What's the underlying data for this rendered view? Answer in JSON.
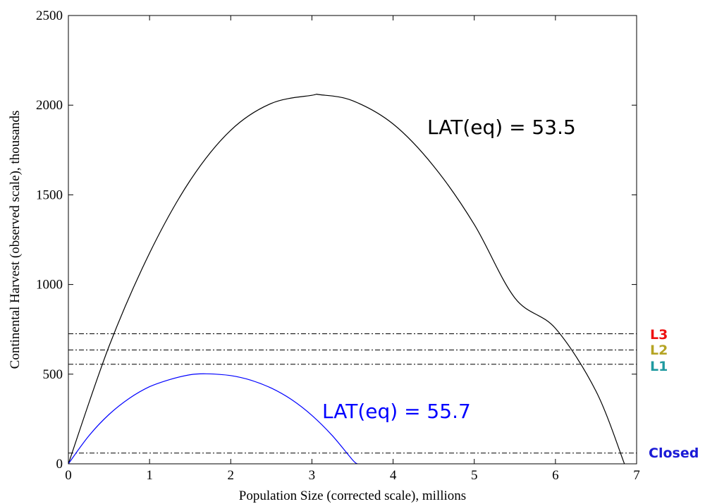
{
  "chart_data": {
    "type": "line",
    "xlabel": "Population Size (corrected scale), millions",
    "ylabel": "Continental Harvest (observed scale), thousands",
    "xlim": [
      0,
      7
    ],
    "ylim": [
      0,
      2500
    ],
    "x_ticks": [
      0,
      1,
      2,
      3,
      4,
      5,
      6,
      7
    ],
    "y_ticks": [
      0,
      500,
      1000,
      1500,
      2000,
      2500
    ],
    "grid": false,
    "series": [
      {
        "name": "LAT(eq) = 53.5",
        "color": "#000000",
        "x": [
          0,
          0.5,
          1,
          1.5,
          2,
          2.5,
          3,
          3.1,
          3.5,
          4,
          4.5,
          5,
          5.5,
          6,
          6.5,
          6.85
        ],
        "y": [
          0,
          655,
          1175,
          1580,
          1860,
          2010,
          2055,
          2058,
          2025,
          1895,
          1660,
          1335,
          925,
          755,
          405,
          0
        ]
      },
      {
        "name": "LAT(eq) = 55.7",
        "color": "#0000ff",
        "x": [
          0,
          0.25,
          0.5,
          0.75,
          1,
          1.25,
          1.5,
          1.7,
          2,
          2.25,
          2.5,
          2.75,
          3,
          3.25,
          3.5,
          3.56
        ],
        "y": [
          0,
          155,
          275,
          365,
          430,
          470,
          497,
          502,
          492,
          466,
          422,
          358,
          270,
          158,
          22,
          0
        ]
      }
    ],
    "reference_lines": [
      {
        "label": "L3",
        "y": 725,
        "color": "#ee1111"
      },
      {
        "label": "L2",
        "y": 635,
        "color": "#b5a424"
      },
      {
        "label": "L1",
        "y": 555,
        "color": "#1f9aa0"
      },
      {
        "label": "Closed",
        "y": 60,
        "color": "#1a1ad6"
      }
    ],
    "annotations": [
      {
        "text": "LAT(eq) = 53.5",
        "color": "#000000"
      },
      {
        "text": "LAT(eq) = 55.7",
        "color": "#0000ff"
      }
    ]
  }
}
